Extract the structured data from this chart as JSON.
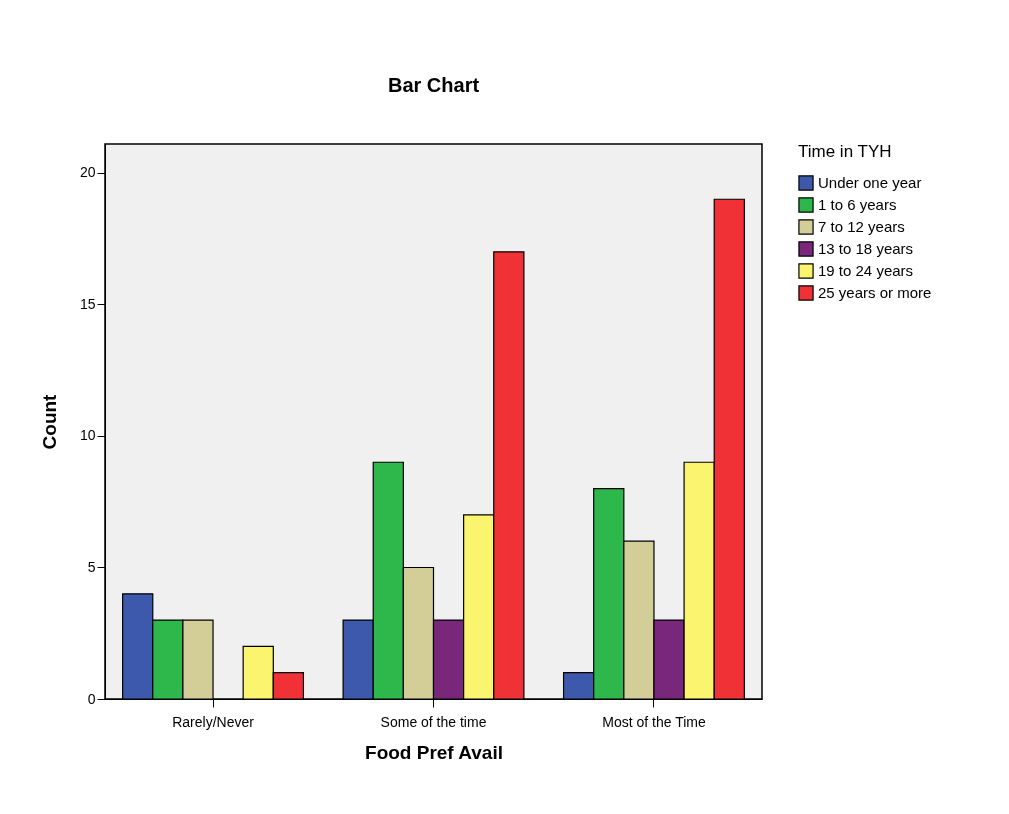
{
  "chart_data": {
    "type": "bar",
    "title": "Bar Chart",
    "xlabel": "Food Pref Avail",
    "ylabel": "Count",
    "legend_title": "Time in TYH",
    "categories": [
      "Rarely/Never",
      "Some of the time",
      "Most of the Time"
    ],
    "series": [
      {
        "name": "Under one year",
        "color": "#3d59ab",
        "values": [
          4,
          3,
          1
        ]
      },
      {
        "name": "1 to 6 years",
        "color": "#2eb84b",
        "values": [
          3,
          9,
          8
        ]
      },
      {
        "name": "7 to 12 years",
        "color": "#d3ce97",
        "values": [
          3,
          5,
          6
        ]
      },
      {
        "name": "13 to 18 years",
        "color": "#79277b",
        "values": [
          null,
          3,
          3
        ]
      },
      {
        "name": "19 to 24 years",
        "color": "#fbf46e",
        "values": [
          2,
          7,
          9
        ]
      },
      {
        "name": "25 years or more",
        "color": "#f03237",
        "values": [
          1,
          17,
          19
        ]
      }
    ],
    "ylim": [
      0,
      21.1
    ],
    "yticks": [
      0,
      5,
      10,
      15,
      20
    ],
    "grid": false,
    "legend": "top right"
  }
}
